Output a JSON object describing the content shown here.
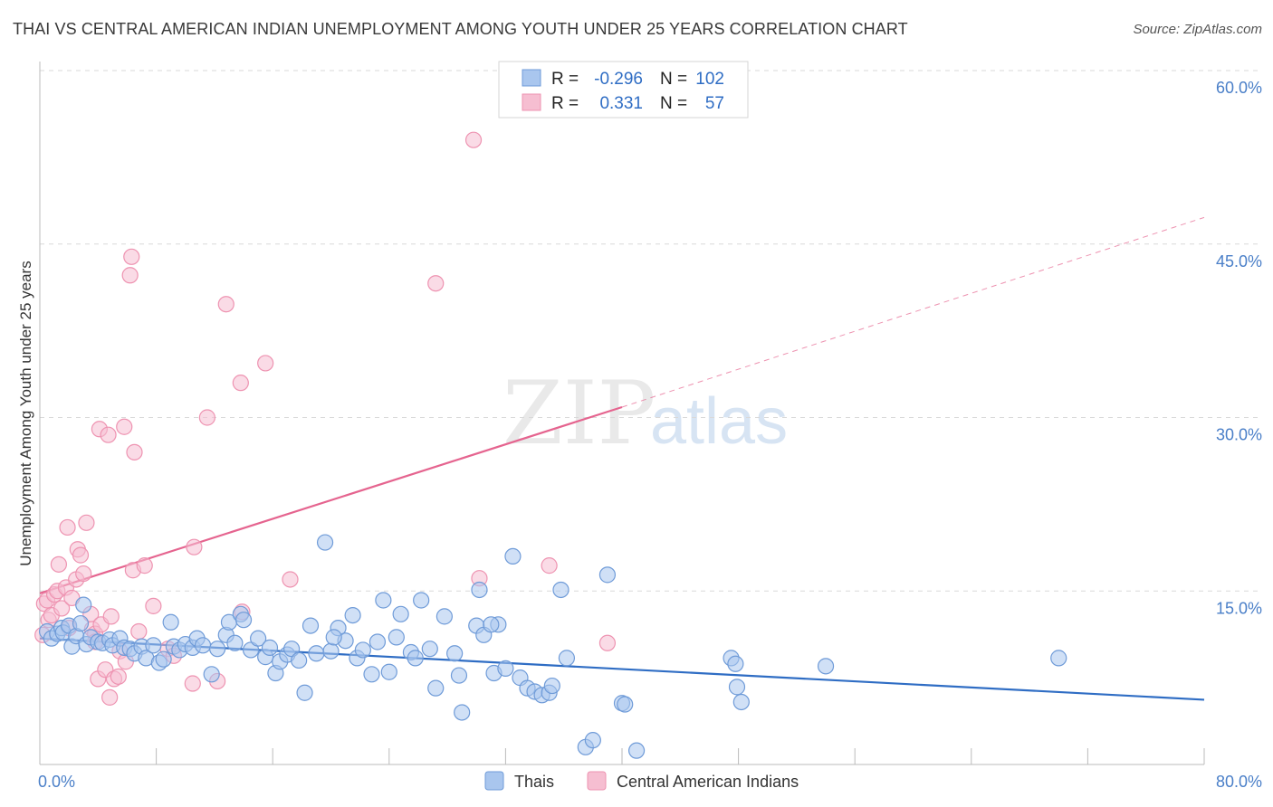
{
  "header": {
    "title": "THAI VS CENTRAL AMERICAN INDIAN UNEMPLOYMENT AMONG YOUTH UNDER 25 YEARS CORRELATION CHART",
    "source": "Source: ZipAtlas.com"
  },
  "watermark": {
    "zip": "ZIP",
    "atlas": "atlas"
  },
  "colors": {
    "thai_fill": "#a9c6ee",
    "thai_stroke": "#6f9bd8",
    "thai_line": "#2f6dc4",
    "cai_fill": "#f6bed1",
    "cai_stroke": "#ee93b1",
    "cai_line": "#e5648f",
    "grid": "#d9d9d9",
    "tick_label": "#4a7fc8"
  },
  "legend_box": {
    "rows": [
      {
        "r_label": "R =",
        "r_value": "-0.296",
        "n_label": "N =",
        "n_value": "102"
      },
      {
        "r_label": "R =",
        "r_value": "0.331",
        "n_label": "N =",
        "n_value": "57"
      }
    ]
  },
  "chart_data": {
    "type": "scatter",
    "title": "THAI VS CENTRAL AMERICAN INDIAN UNEMPLOYMENT AMONG YOUTH UNDER 25 YEARS CORRELATION CHART",
    "xlabel": "",
    "ylabel": "Unemployment Among Youth under 25 years",
    "xlim": [
      0,
      80
    ],
    "ylim": [
      0,
      60
    ],
    "x_tick_labels": [
      "0.0%",
      "80.0%"
    ],
    "y_ticks": [
      15,
      30,
      45,
      60
    ],
    "y_tick_labels": [
      "15.0%",
      "30.0%",
      "45.0%",
      "60.0%"
    ],
    "legend": [
      "Thais",
      "Central American Indians"
    ],
    "series": [
      {
        "name": "Thais",
        "r": -0.296,
        "n": 102,
        "trend": {
          "x": [
            0,
            80
          ],
          "y": [
            10.9,
            5.6
          ]
        },
        "points": [
          [
            0.5,
            11.5
          ],
          [
            0.8,
            10.9
          ],
          [
            1.2,
            11.3
          ],
          [
            1.5,
            11.8
          ],
          [
            1.6,
            11.4
          ],
          [
            2.0,
            12.0
          ],
          [
            2.2,
            10.2
          ],
          [
            2.5,
            11.1
          ],
          [
            3.0,
            13.8
          ],
          [
            3.2,
            10.4
          ],
          [
            3.5,
            11.0
          ],
          [
            4.0,
            10.6
          ],
          [
            4.3,
            10.5
          ],
          [
            4.8,
            10.8
          ],
          [
            5.0,
            10.3
          ],
          [
            5.5,
            10.9
          ],
          [
            5.8,
            10.1
          ],
          [
            6.2,
            10.0
          ],
          [
            6.5,
            9.6
          ],
          [
            7.0,
            10.2
          ],
          [
            7.3,
            9.2
          ],
          [
            7.8,
            10.3
          ],
          [
            8.2,
            8.8
          ],
          [
            9.0,
            12.3
          ],
          [
            9.2,
            10.2
          ],
          [
            9.6,
            9.9
          ],
          [
            10.0,
            10.4
          ],
          [
            10.5,
            10.1
          ],
          [
            10.8,
            10.9
          ],
          [
            11.2,
            10.3
          ],
          [
            11.8,
            7.8
          ],
          [
            12.2,
            10.0
          ],
          [
            12.8,
            11.2
          ],
          [
            13.0,
            12.3
          ],
          [
            13.4,
            10.5
          ],
          [
            13.8,
            13.0
          ],
          [
            14.0,
            12.5
          ],
          [
            14.5,
            9.9
          ],
          [
            15.0,
            10.9
          ],
          [
            15.5,
            9.3
          ],
          [
            15.8,
            10.1
          ],
          [
            16.2,
            7.9
          ],
          [
            16.5,
            8.9
          ],
          [
            17.0,
            9.5
          ],
          [
            17.3,
            10.0
          ],
          [
            17.8,
            9.0
          ],
          [
            18.2,
            6.2
          ],
          [
            18.6,
            12.0
          ],
          [
            19.0,
            9.6
          ],
          [
            19.6,
            19.2
          ],
          [
            20.0,
            9.8
          ],
          [
            20.5,
            11.8
          ],
          [
            21.0,
            10.7
          ],
          [
            21.5,
            12.9
          ],
          [
            21.8,
            9.2
          ],
          [
            22.2,
            9.9
          ],
          [
            22.8,
            7.8
          ],
          [
            23.2,
            10.6
          ],
          [
            23.6,
            14.2
          ],
          [
            24.0,
            8.0
          ],
          [
            24.5,
            11.0
          ],
          [
            24.8,
            13.0
          ],
          [
            25.5,
            9.7
          ],
          [
            25.8,
            9.2
          ],
          [
            26.2,
            14.2
          ],
          [
            26.8,
            10.0
          ],
          [
            27.2,
            6.6
          ],
          [
            27.8,
            12.8
          ],
          [
            28.5,
            9.6
          ],
          [
            28.8,
            7.7
          ],
          [
            29.0,
            4.5
          ],
          [
            30.0,
            12.0
          ],
          [
            30.5,
            11.2
          ],
          [
            30.2,
            15.1
          ],
          [
            31.2,
            7.9
          ],
          [
            31.5,
            12.1
          ],
          [
            32.0,
            8.3
          ],
          [
            32.5,
            18.0
          ],
          [
            33.0,
            7.5
          ],
          [
            33.5,
            6.6
          ],
          [
            34.0,
            6.3
          ],
          [
            34.5,
            6.0
          ],
          [
            35.0,
            6.2
          ],
          [
            35.2,
            6.8
          ],
          [
            35.8,
            15.1
          ],
          [
            36.2,
            9.2
          ],
          [
            37.5,
            1.5
          ],
          [
            39.0,
            16.4
          ],
          [
            38.0,
            2.1
          ],
          [
            40.0,
            5.3
          ],
          [
            41.0,
            1.2
          ],
          [
            47.5,
            9.2
          ],
          [
            47.8,
            8.7
          ],
          [
            47.9,
            6.7
          ],
          [
            48.2,
            5.4
          ],
          [
            54.0,
            8.5
          ],
          [
            70.0,
            9.2
          ],
          [
            40.2,
            5.2
          ],
          [
            2.8,
            12.2
          ],
          [
            8.5,
            9.1
          ],
          [
            20.2,
            11.0
          ],
          [
            31.0,
            12.1
          ]
        ]
      },
      {
        "name": "Central American Indians",
        "r": 0.331,
        "n": 57,
        "trend": {
          "x": [
            0,
            40
          ],
          "y": [
            14.8,
            30.9
          ]
        },
        "trend_extension": {
          "x": [
            40,
            80
          ],
          "y": [
            30.9,
            47.3
          ]
        },
        "points": [
          [
            0.3,
            13.9
          ],
          [
            0.5,
            14.2
          ],
          [
            0.6,
            12.5
          ],
          [
            0.8,
            12.9
          ],
          [
            1.0,
            14.7
          ],
          [
            1.2,
            15.0
          ],
          [
            1.3,
            17.3
          ],
          [
            1.5,
            13.5
          ],
          [
            1.8,
            15.3
          ],
          [
            1.9,
            20.5
          ],
          [
            2.0,
            11.8
          ],
          [
            2.2,
            14.4
          ],
          [
            2.5,
            16.0
          ],
          [
            2.6,
            18.6
          ],
          [
            2.8,
            18.1
          ],
          [
            3.0,
            16.5
          ],
          [
            3.2,
            20.9
          ],
          [
            3.5,
            13.0
          ],
          [
            3.6,
            11.7
          ],
          [
            3.8,
            11.3
          ],
          [
            3.8,
            10.6
          ],
          [
            4.0,
            7.4
          ],
          [
            4.1,
            29.0
          ],
          [
            4.2,
            12.1
          ],
          [
            4.5,
            8.2
          ],
          [
            4.7,
            28.5
          ],
          [
            4.8,
            5.8
          ],
          [
            4.9,
            12.8
          ],
          [
            5.1,
            7.4
          ],
          [
            5.4,
            7.6
          ],
          [
            5.5,
            9.8
          ],
          [
            5.8,
            29.2
          ],
          [
            5.9,
            8.9
          ],
          [
            6.2,
            42.3
          ],
          [
            6.3,
            43.9
          ],
          [
            6.4,
            16.8
          ],
          [
            6.5,
            27.0
          ],
          [
            6.8,
            11.5
          ],
          [
            7.2,
            17.2
          ],
          [
            7.8,
            13.7
          ],
          [
            8.8,
            10.0
          ],
          [
            9.2,
            9.4
          ],
          [
            10.5,
            7.0
          ],
          [
            10.6,
            18.8
          ],
          [
            11.5,
            30.0
          ],
          [
            12.2,
            7.2
          ],
          [
            12.8,
            39.8
          ],
          [
            13.8,
            33.0
          ],
          [
            13.9,
            13.2
          ],
          [
            15.5,
            34.7
          ],
          [
            17.2,
            16.0
          ],
          [
            27.2,
            41.6
          ],
          [
            29.8,
            54.0
          ],
          [
            30.2,
            16.1
          ],
          [
            35.0,
            17.2
          ],
          [
            39.0,
            10.5
          ],
          [
            0.2,
            11.2
          ]
        ]
      }
    ]
  },
  "bottom_legend": {
    "thai_label": "Thais",
    "cai_label": "Central American Indians"
  }
}
